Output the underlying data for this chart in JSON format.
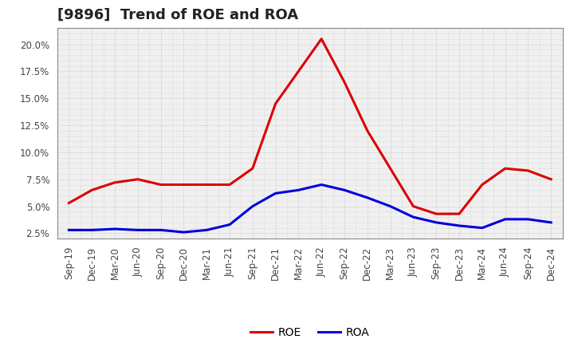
{
  "title": "[9896]  Trend of ROE and ROA",
  "x_labels": [
    "Sep-19",
    "Dec-19",
    "Mar-20",
    "Jun-20",
    "Sep-20",
    "Dec-20",
    "Mar-21",
    "Jun-21",
    "Sep-21",
    "Dec-21",
    "Mar-22",
    "Jun-22",
    "Sep-22",
    "Dec-22",
    "Mar-23",
    "Jun-23",
    "Sep-23",
    "Dec-23",
    "Mar-24",
    "Jun-24",
    "Sep-24",
    "Dec-24"
  ],
  "roe": [
    5.3,
    6.5,
    7.2,
    7.5,
    7.0,
    7.0,
    7.0,
    7.0,
    8.5,
    14.5,
    17.5,
    20.5,
    16.5,
    12.0,
    8.5,
    5.0,
    4.3,
    4.3,
    7.0,
    8.5,
    8.3,
    7.5
  ],
  "roa": [
    2.8,
    2.8,
    2.9,
    2.8,
    2.8,
    2.6,
    2.8,
    3.3,
    5.0,
    6.2,
    6.5,
    7.0,
    6.5,
    5.8,
    5.0,
    4.0,
    3.5,
    3.2,
    3.0,
    3.8,
    3.8,
    3.5
  ],
  "roe_color": "#dd0000",
  "roa_color": "#0000dd",
  "line_width": 2.2,
  "ylim": [
    2.0,
    21.5
  ],
  "yticks": [
    2.5,
    5.0,
    7.5,
    10.0,
    12.5,
    15.0,
    17.5,
    20.0
  ],
  "background_color": "#ffffff",
  "plot_bg_color": "#f0f0f0",
  "grid_color": "#aaaaaa",
  "title_fontsize": 13,
  "tick_fontsize": 8.5,
  "legend_fontsize": 10
}
